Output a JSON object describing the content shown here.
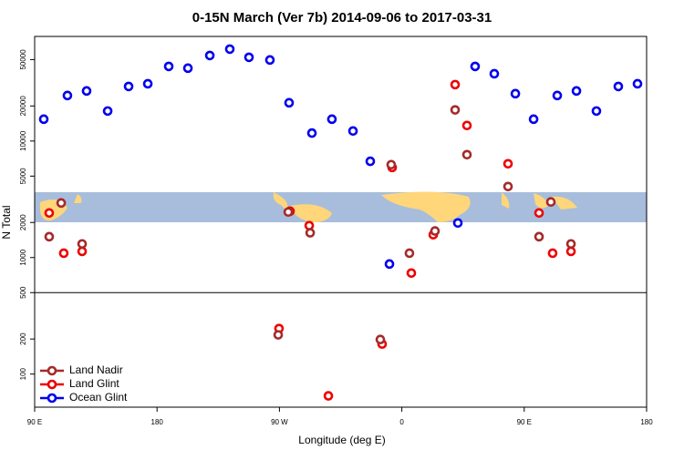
{
  "chart_data": {
    "type": "scatter",
    "title": "0-15N March (Ver 7b)   2014-09-06 to 2017-03-31",
    "x_label": "Longitude (deg E)",
    "y_label": "N Total",
    "log_y": true,
    "xlim": [
      90,
      540
    ],
    "ylim": [
      52,
      79000
    ],
    "xticks": [
      {
        "value": 90,
        "label": "90 E"
      },
      {
        "value": 180,
        "label": "180"
      },
      {
        "value": 270,
        "label": "90 W"
      },
      {
        "value": 360,
        "label": "0"
      },
      {
        "value": 450,
        "label": "90 E"
      },
      {
        "value": 540,
        "label": "180"
      }
    ],
    "yticks": [
      100,
      200,
      500,
      1000,
      2000,
      5000,
      10000,
      20000,
      50000
    ],
    "hline": 500,
    "legend": "bottom-left",
    "series": [
      {
        "name": "Ocean Glint",
        "color": "#0000ee",
        "x": [
          96.7,
          114.1,
          128.2,
          143.7,
          159.1,
          173.2,
          188.6,
          202.7,
          218.8,
          233.5,
          247.6,
          263.0,
          277.1,
          293.9,
          308.6,
          324.1,
          336.8,
          350.9,
          401.2,
          413.9,
          428.0,
          443.5,
          456.9,
          474.3,
          488.4,
          503.1,
          519.2,
          533.3
        ],
        "values": [
          15400,
          24600,
          26900,
          18100,
          29400,
          31000,
          43700,
          42200,
          54200,
          61500,
          52300,
          49600,
          21300,
          11700,
          15400,
          12200,
          6700,
          880,
          1980,
          43700,
          37800,
          25500,
          15400,
          24600,
          26900,
          18100,
          29400,
          31000
        ]
      },
      {
        "name": "Land Glint",
        "color": "#ee0000",
        "x": [
          100.7,
          111.4,
          124.9,
          277.8,
          291.9,
          269.7,
          306.0,
          345.5,
          352.9,
          367.0,
          383.1,
          399.2,
          407.9,
          438.1,
          460.9,
          470.9,
          484.4
        ],
        "values": [
          2415,
          1090,
          1130,
          2500,
          1880,
          246,
          65,
          181,
          5930,
          736,
          1570,
          30500,
          13600,
          6380,
          2415,
          1090,
          1130
        ]
      },
      {
        "name": "Land Nadir",
        "color": "#a52a2a",
        "x": [
          109.5,
          100.7,
          124.9,
          276.5,
          292.6,
          269.1,
          344.2,
          352.2,
          365.6,
          384.4,
          399.2,
          407.9,
          438.1,
          469.6,
          460.9,
          484.4
        ],
        "values": [
          2940,
          1510,
          1310,
          2460,
          1630,
          217,
          198,
          6270,
          1090,
          1690,
          18500,
          7640,
          4070,
          3000,
          1510,
          1310
        ]
      }
    ]
  }
}
